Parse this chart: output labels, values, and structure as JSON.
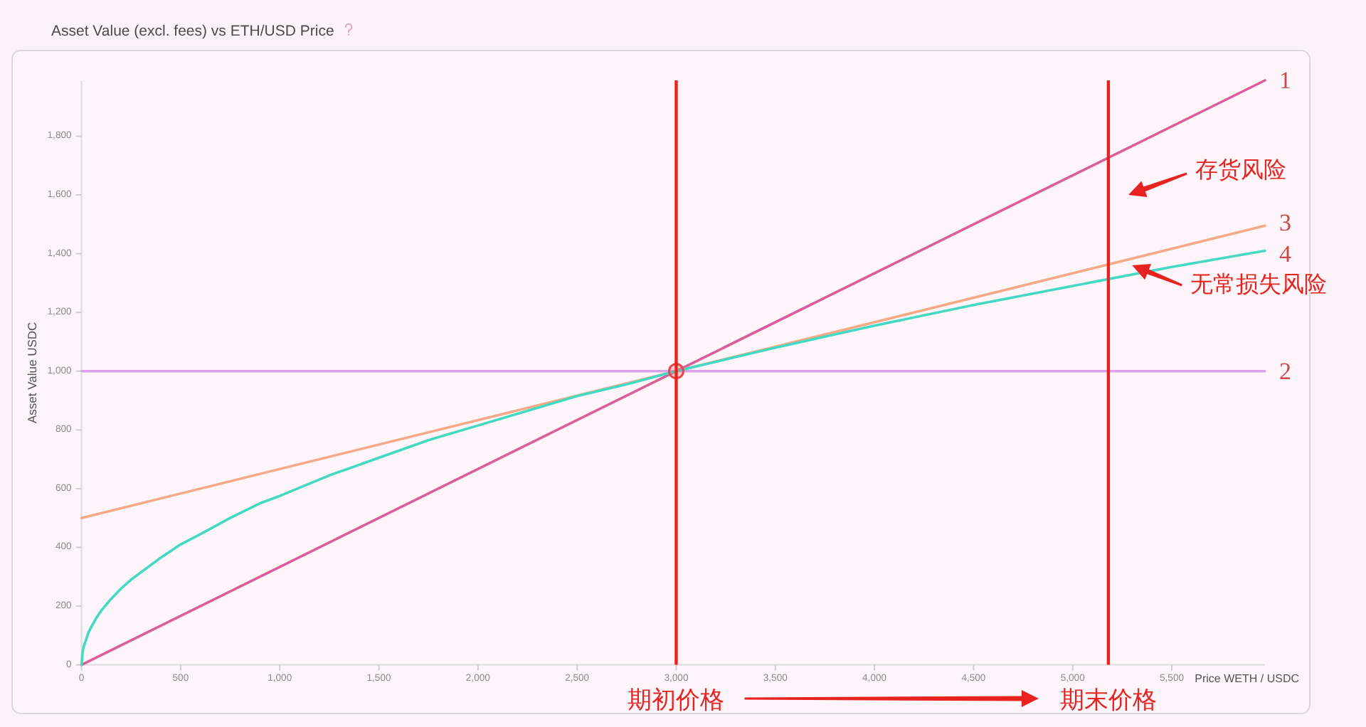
{
  "chart_data": {
    "type": "line",
    "title": "Asset Value (excl. fees) vs ETH/USD Price",
    "xlabel": "Price WETH / USDC",
    "ylabel": "Asset Value USDC",
    "xlim": [
      0,
      5970
    ],
    "ylim": [
      0,
      1990
    ],
    "xticks": [
      0,
      500,
      {
        "value": 1000,
        "label": "1,000"
      },
      {
        "value": 1500,
        "label": "1,500"
      },
      {
        "value": 2000,
        "label": "2,000"
      },
      {
        "value": 2500,
        "label": "2,500"
      },
      {
        "value": 3000,
        "label": "3,000"
      },
      {
        "value": 3500,
        "label": "3,500"
      },
      {
        "value": 4000,
        "label": "4,000"
      },
      {
        "value": 4500,
        "label": "4,500"
      },
      {
        "value": 5000,
        "label": "5,000"
      },
      {
        "value": 5500,
        "label": "5,500"
      }
    ],
    "yticks": [
      0,
      200,
      400,
      600,
      800,
      {
        "value": 1000,
        "label": "1,000"
      },
      {
        "value": 1200,
        "label": "1,200"
      },
      {
        "value": 1400,
        "label": "1,400"
      },
      {
        "value": 1600,
        "label": "1,600"
      },
      {
        "value": 1800,
        "label": "1,800"
      }
    ],
    "series": [
      {
        "name": "1",
        "color": "#dc5e98",
        "x": [
          0,
          5970
        ],
        "values": [
          0,
          1990
        ]
      },
      {
        "name": "2",
        "color": "#dba2ec",
        "x": [
          0,
          5970
        ],
        "values": [
          1000,
          1000
        ]
      },
      {
        "name": "3",
        "color": "#f6a987",
        "x": [
          0,
          5970
        ],
        "values": [
          500,
          1495
        ]
      },
      {
        "name": "4",
        "color": "#44d9c2",
        "x": [
          0,
          5,
          10,
          20,
          35,
          50,
          75,
          100,
          150,
          200,
          250,
          300,
          400,
          500,
          600,
          750,
          900,
          1000,
          1250,
          1500,
          1750,
          2000,
          2250,
          2500,
          2750,
          3000,
          3500,
          4000,
          4500,
          5000,
          5500,
          5970
        ],
        "values": [
          0,
          40,
          60,
          80,
          110,
          130,
          160,
          185,
          225,
          260,
          290,
          315,
          365,
          410,
          445,
          500,
          550,
          575,
          645,
          705,
          765,
          815,
          865,
          915,
          955,
          1000,
          1080,
          1155,
          1225,
          1290,
          1355,
          1410
        ]
      },
      {
        "type": "scatter",
        "color": "#e8474a",
        "marker": "circle",
        "x": [
          3000
        ],
        "values": [
          1000
        ]
      }
    ],
    "ref_lines": [
      {
        "axis": "x",
        "value": 3000,
        "label": "期初价格",
        "color": "#e8231f"
      },
      {
        "axis": "x",
        "value": 5180,
        "label": "期末价格",
        "color": "#e8231f"
      }
    ],
    "annotations": [
      "存货风险",
      {
        "text": "无常损失风险",
        "x": 5300,
        "y": 1360
      }
    ]
  }
}
